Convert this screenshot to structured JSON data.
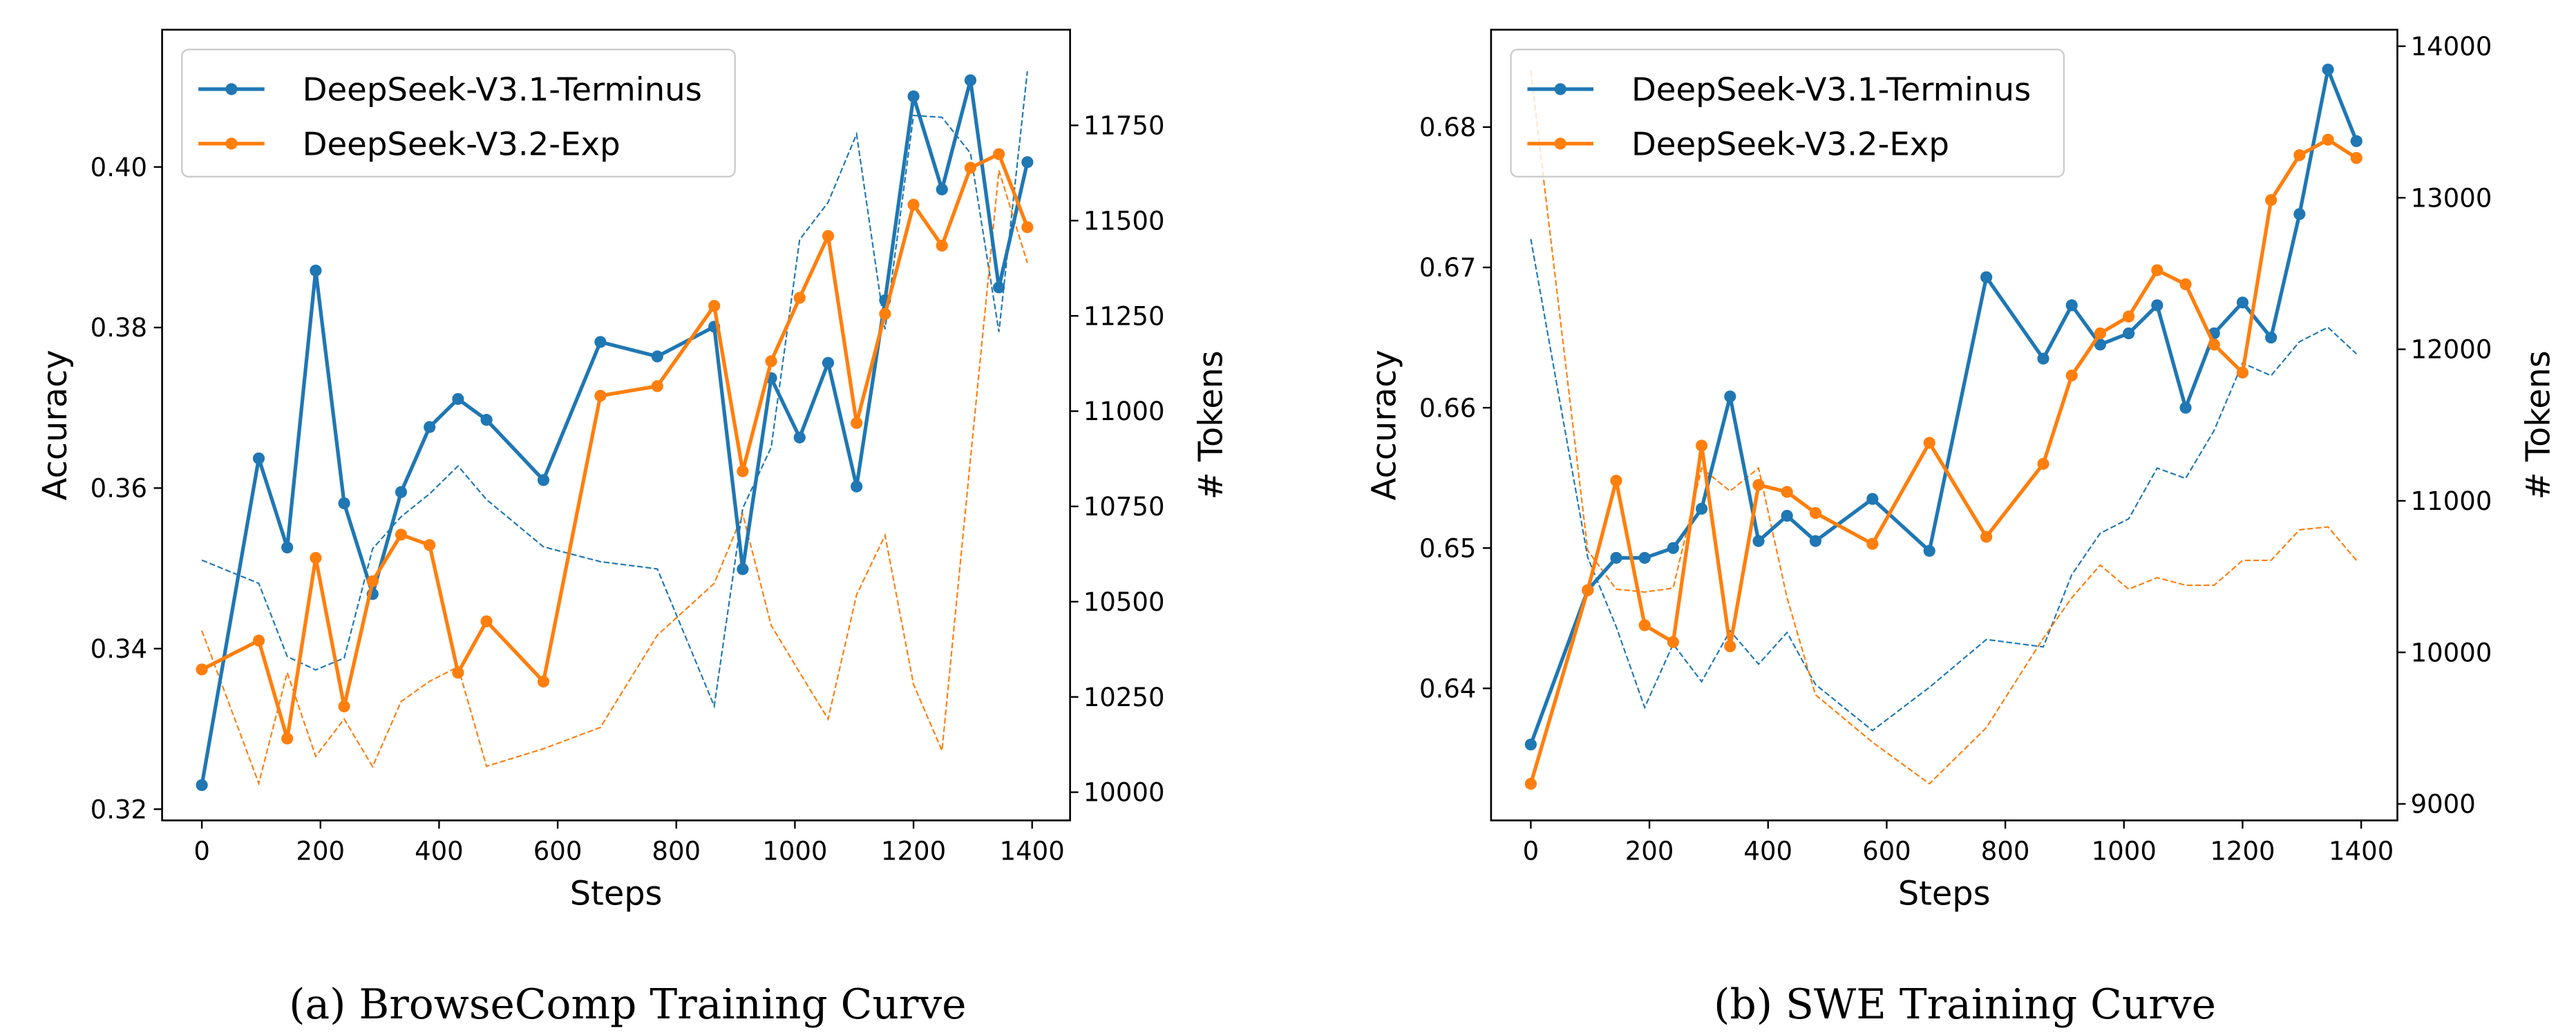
{
  "colors": {
    "terminus": "#1f77b4",
    "exp": "#ff7f0e"
  },
  "chart_data": [
    {
      "type": "line",
      "caption": "(a)  BrowseComp Training Curve",
      "xlabel": "Steps",
      "ylabel": "Accuracy",
      "y2label": "# Tokens",
      "xlim": [
        -67,
        1464
      ],
      "ylim": [
        0.3186,
        0.4171
      ],
      "y2lim": [
        9926,
        12001
      ],
      "xticks": [
        "0",
        "200",
        "400",
        "600",
        "800",
        "1000",
        "1200",
        "1400"
      ],
      "yticks": [
        "0.32",
        "0.34",
        "0.36",
        "0.38",
        "0.40"
      ],
      "y2ticks": [
        "10000",
        "10250",
        "10500",
        "10750",
        "11000",
        "11250",
        "11500",
        "11750"
      ],
      "legend": {
        "placement": "top-left",
        "entries": [
          "DeepSeek-V3.1-Terminus",
          "DeepSeek-V3.2-Exp"
        ]
      },
      "grid": false,
      "x": [
        0,
        96,
        144,
        192,
        240,
        288,
        336,
        384,
        432,
        480,
        576,
        672,
        768,
        864,
        912,
        960,
        1008,
        1056,
        1104,
        1152,
        1200,
        1248,
        1296,
        1344,
        1392
      ],
      "series": [
        {
          "name": "DeepSeek-V3.1-Terminus",
          "axis": "accuracy",
          "style": "solid-marker",
          "color": "#1f77b4",
          "values": [
            0.323,
            0.3637,
            0.3526,
            0.3871,
            0.3581,
            0.3468,
            0.3595,
            0.3676,
            0.3711,
            0.3685,
            0.361,
            0.3782,
            0.3764,
            0.3801,
            0.3499,
            0.3737,
            0.3663,
            0.3756,
            0.3602,
            0.3834,
            0.4088,
            0.3972,
            0.4108,
            0.385,
            0.4006
          ]
        },
        {
          "name": "DeepSeek-V3.2-Exp",
          "axis": "accuracy",
          "style": "solid-marker",
          "color": "#ff7f0e",
          "values": [
            0.3374,
            0.341,
            0.3288,
            0.3513,
            0.3328,
            0.3484,
            0.3542,
            0.3529,
            0.337,
            0.3434,
            0.3359,
            0.3715,
            0.3727,
            0.3827,
            0.3621,
            0.3758,
            0.3837,
            0.3914,
            0.3681,
            0.3817,
            0.3953,
            0.3902,
            0.3999,
            0.4016,
            0.3925
          ]
        },
        {
          "axis": "tokens",
          "style": "dashed",
          "color": "#1f77b4",
          "values": [
            10609,
            10548,
            10356,
            10321,
            10352,
            10639,
            10723,
            10783,
            10856,
            10768,
            10644,
            10605,
            10586,
            10226,
            10745,
            10905,
            11450,
            11548,
            11727,
            11215,
            11776,
            11771,
            11677,
            11208,
            11892
          ]
        },
        {
          "axis": "tokens",
          "style": "dashed",
          "color": "#ff7f0e",
          "values": [
            10424,
            10023,
            10314,
            10094,
            10192,
            10067,
            10238,
            10291,
            10329,
            10068,
            10114,
            10170,
            10412,
            10548,
            10730,
            10438,
            10314,
            10192,
            10518,
            10674,
            10283,
            10109,
            10874,
            11632,
            11389
          ]
        }
      ]
    },
    {
      "type": "line",
      "caption": "(b)  SWE Training Curve",
      "xlabel": "Steps",
      "ylabel": "Accuracy",
      "y2label": "# Tokens",
      "xlim": [
        -67,
        1461
      ],
      "ylim": [
        0.63059,
        0.68694
      ],
      "y2lim": [
        8891,
        14109
      ],
      "xticks": [
        "0",
        "200",
        "400",
        "600",
        "800",
        "1000",
        "1200",
        "1400"
      ],
      "yticks": [
        "0.64",
        "0.65",
        "0.66",
        "0.67",
        "0.68"
      ],
      "y2ticks": [
        "9000",
        "10000",
        "11000",
        "12000",
        "13000",
        "14000"
      ],
      "legend": {
        "placement": "top-left",
        "entries": [
          "DeepSeek-V3.1-Terminus",
          "DeepSeek-V3.2-Exp"
        ]
      },
      "grid": false,
      "x": [
        0,
        96,
        144,
        192,
        240,
        288,
        336,
        384,
        432,
        480,
        576,
        672,
        768,
        864,
        912,
        960,
        1008,
        1056,
        1104,
        1152,
        1200,
        1248,
        1296,
        1344,
        1392
      ],
      "series": [
        {
          "name": "DeepSeek-V3.1-Terminus",
          "axis": "accuracy",
          "style": "solid-marker",
          "color": "#1f77b4",
          "values": [
            0.636,
            0.647,
            0.6493,
            0.6493,
            0.65,
            0.6528,
            0.6608,
            0.6505,
            0.6523,
            0.6505,
            0.6535,
            0.6498,
            0.6693,
            0.6635,
            0.6673,
            0.6645,
            0.6653,
            0.6673,
            0.66,
            0.6653,
            0.6675,
            0.665,
            0.6738,
            0.6841,
            0.679
          ]
        },
        {
          "name": "DeepSeek-V3.2-Exp",
          "axis": "accuracy",
          "style": "solid-marker",
          "color": "#ff7f0e",
          "values": [
            0.6332,
            0.647,
            0.6548,
            0.6445,
            0.6433,
            0.6573,
            0.643,
            0.6545,
            0.654,
            0.6525,
            0.6503,
            0.6575,
            0.6508,
            0.656,
            0.6623,
            0.6653,
            0.6665,
            0.6698,
            0.6688,
            0.6645,
            0.6625,
            0.6748,
            0.678,
            0.6791,
            0.6778
          ]
        },
        {
          "axis": "tokens",
          "style": "dashed",
          "color": "#1f77b4",
          "values": [
            12728,
            10626,
            10169,
            9636,
            10055,
            9807,
            10142,
            9922,
            10131,
            9788,
            9484,
            9769,
            10085,
            10036,
            10512,
            10786,
            10881,
            11216,
            11148,
            11464,
            11909,
            11826,
            12050,
            12145,
            11970
          ]
        },
        {
          "axis": "tokens",
          "style": "dashed",
          "color": "#ff7f0e",
          "values": [
            13836,
            10672,
            10417,
            10398,
            10424,
            11216,
            11064,
            11216,
            10360,
            9720,
            9407,
            9133,
            9503,
            10093,
            10360,
            10576,
            10417,
            10493,
            10443,
            10443,
            10607,
            10607,
            10809,
            10828,
            10607
          ]
        }
      ]
    }
  ]
}
